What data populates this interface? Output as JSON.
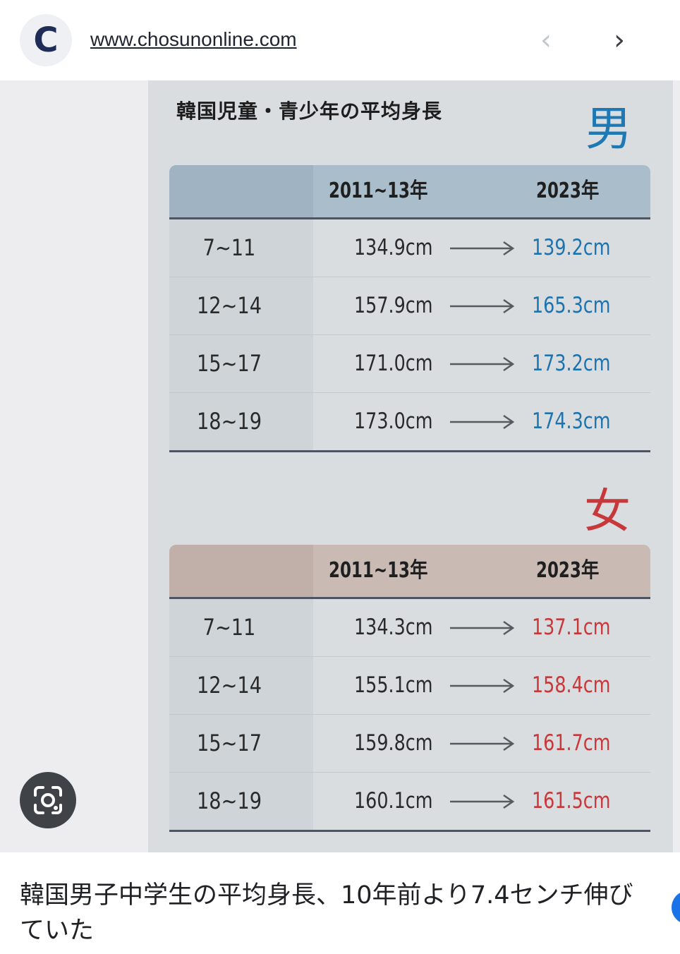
{
  "header": {
    "logo_letter": "C",
    "url": "www.chosunonline.com",
    "prev_glyph": "‹",
    "next_glyph": "›"
  },
  "infographic": {
    "title": "韓国児童・青少年の平均身長",
    "tables": [
      {
        "gender": "男",
        "color": "#1e78b4",
        "header": {
          "col_old": "2011~13年",
          "col_new": "2023年"
        },
        "rows": [
          {
            "age": "7~11",
            "old": "134.9cm",
            "new": "139.2cm"
          },
          {
            "age": "12~14",
            "old": "157.9cm",
            "new": "165.3cm"
          },
          {
            "age": "15~17",
            "old": "171.0cm",
            "new": "173.2cm"
          },
          {
            "age": "18~19",
            "old": "173.0cm",
            "new": "174.3cm"
          }
        ]
      },
      {
        "gender": "女",
        "color": "#c8383a",
        "header": {
          "col_old": "2011~13年",
          "col_new": "2023年"
        },
        "rows": [
          {
            "age": "7~11",
            "old": "134.3cm",
            "new": "137.1cm"
          },
          {
            "age": "12~14",
            "old": "155.1cm",
            "new": "158.4cm"
          },
          {
            "age": "15~17",
            "old": "159.8cm",
            "new": "161.7cm"
          },
          {
            "age": "18~19",
            "old": "160.1cm",
            "new": "161.5cm"
          }
        ]
      }
    ]
  },
  "lens_icon": "google-lens-icon",
  "caption": "韓国男子中学生の平均身長、10年前より7.4センチ伸びていた"
}
